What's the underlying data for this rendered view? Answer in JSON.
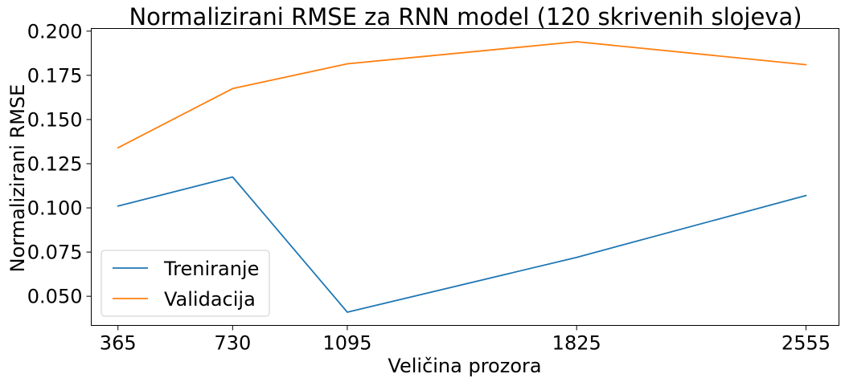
{
  "chart_data": {
    "type": "line",
    "title": "Normalizirani RMSE za RNN model (120 skrivenih slojeva)",
    "xlabel": "Veličina prozora",
    "ylabel": "Normalizirani RMSE",
    "x": [
      365,
      730,
      1095,
      1825,
      2555
    ],
    "x_tick_labels": [
      "365",
      "730",
      "1095",
      "1825",
      "2555"
    ],
    "xlim": [
      280,
      2660
    ],
    "ylim": [
      0.0335,
      0.2015
    ],
    "y_ticks": [
      0.05,
      0.075,
      0.1,
      0.125,
      0.15,
      0.175,
      0.2
    ],
    "y_tick_labels": [
      "0.050",
      "0.075",
      "0.100",
      "0.125",
      "0.150",
      "0.175",
      "0.200"
    ],
    "grid": false,
    "legend_position": "lower-left",
    "series": [
      {
        "name": "Treniranje",
        "color": "#1f77b4",
        "values": [
          0.101,
          0.1175,
          0.041,
          0.072,
          0.107
        ]
      },
      {
        "name": "Validacija",
        "color": "#ff7f0e",
        "values": [
          0.134,
          0.1675,
          0.1815,
          0.194,
          0.181
        ]
      }
    ]
  }
}
